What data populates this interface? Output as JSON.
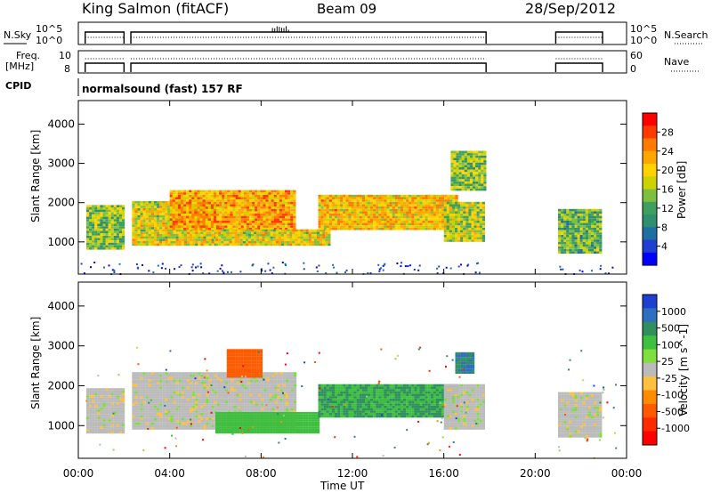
{
  "header": {
    "station": "King Salmon (fitACF)",
    "beam": "Beam 09",
    "date": "28/Sep/2012"
  },
  "left_labels": {
    "nsky": "N.Sky",
    "freq_line1": "Freq.",
    "freq_line2": "[MHz]",
    "cpid": "CPID"
  },
  "right_labels": {
    "nsearch": "N.Search",
    "nave": "Nave"
  },
  "cpid_text": "normalsound (fast) 157 RF",
  "chart_data": [
    {
      "type": "line",
      "panel": "noise",
      "series": [
        {
          "name": "N.Sky",
          "style": "solid",
          "x_hours": [
            0.3,
            2.0,
            2.3,
            17.85,
            20.9,
            22.95
          ],
          "segments_hours": [
            [
              0.3,
              2.0
            ],
            [
              2.3,
              17.85
            ],
            [
              20.9,
              22.95
            ]
          ],
          "level": "near 10^5 / 10^0 scale, steady with spikes near 08:30-09:00"
        },
        {
          "name": "N.Search",
          "style": "dotted",
          "segments_hours": [
            [
              0.3,
              2.0
            ],
            [
              2.3,
              17.85
            ],
            [
              20.9,
              22.95
            ]
          ]
        }
      ],
      "left_ticks": [
        "10^5",
        "10^0"
      ],
      "right_ticks": [
        "10^5",
        "10^0"
      ]
    },
    {
      "type": "line",
      "panel": "freq-nave",
      "series": [
        {
          "name": "Freq.",
          "style": "solid",
          "unit": "MHz"
        },
        {
          "name": "Nave",
          "style": "dotted"
        }
      ],
      "left_ticks": [
        "10",
        "8"
      ],
      "right_ticks": [
        "60",
        "0"
      ]
    },
    {
      "type": "heatmap",
      "panel": "power",
      "ylabel": "Slant Range [km]",
      "ylim": [
        180,
        4600
      ],
      "yticks": [
        1000,
        2000,
        3000,
        4000
      ],
      "x_range_hours": [
        0,
        24
      ],
      "colorbar": {
        "label": "Power [dB]",
        "ticks": [
          "28",
          "24",
          "20",
          "16",
          "12",
          "8",
          "4"
        ],
        "colors": [
          "#ff0000",
          "#ff3a00",
          "#ff7a00",
          "#ffa600",
          "#ffd200",
          "#cdd200",
          "#7fbf3f",
          "#3f9f5f",
          "#2f8f6f",
          "#1f6fa0",
          "#1f3fd0",
          "#0000ff"
        ]
      },
      "bands": [
        {
          "t0": 0.35,
          "t1": 1.95,
          "r0": 800,
          "r1": 1900,
          "level": 14
        },
        {
          "t0": 2.35,
          "t1": 6.0,
          "r0": 900,
          "r1": 2000,
          "level": 18
        },
        {
          "t0": 4.0,
          "t1": 9.5,
          "r0": 1300,
          "r1": 2300,
          "level": 22
        },
        {
          "t0": 6.0,
          "t1": 11.0,
          "r0": 900,
          "r1": 1300,
          "level": 18
        },
        {
          "t0": 10.5,
          "t1": 16.5,
          "r0": 1300,
          "r1": 2200,
          "level": 20
        },
        {
          "t0": 16.0,
          "t1": 17.8,
          "r0": 1000,
          "r1": 2000,
          "level": 16
        },
        {
          "t0": 16.3,
          "t1": 17.8,
          "r0": 2300,
          "r1": 3300,
          "level": 14
        },
        {
          "t0": 21.0,
          "t1": 22.9,
          "r0": 700,
          "r1": 1800,
          "level": 12
        }
      ],
      "xticks": [
        "00:00",
        "04:00",
        "08:00",
        "12:00",
        "16:00",
        "20:00",
        "00:00"
      ]
    },
    {
      "type": "heatmap",
      "panel": "velocity",
      "ylabel": "Slant Range [km]",
      "xlabel": "Time UT",
      "ylim": [
        180,
        4600
      ],
      "yticks": [
        1000,
        2000,
        3000,
        4000
      ],
      "x_range_hours": [
        0,
        24
      ],
      "colorbar": {
        "label": "Velocity [m s^-1]",
        "ticks": [
          "1000",
          "500",
          "100",
          "25",
          "-25",
          "-100",
          "-500",
          "-1000"
        ],
        "colors": [
          "#1f3fd0",
          "#2f6fc0",
          "#2f8f5f",
          "#3fbf3f",
          "#7fdf3f",
          "#bbbbbb",
          "#ffbf3f",
          "#ff8c00",
          "#ff5a00",
          "#ff2a00",
          "#ff0000"
        ]
      },
      "bands": [
        {
          "t0": 0.35,
          "t1": 1.95,
          "r0": 800,
          "r1": 1900,
          "vel": 0
        },
        {
          "t0": 2.35,
          "t1": 9.5,
          "r0": 900,
          "r1": 2300,
          "vel": 0
        },
        {
          "t0": 6.0,
          "t1": 10.5,
          "r0": 800,
          "r1": 1300,
          "vel": 60
        },
        {
          "t0": 10.5,
          "t1": 16.5,
          "r0": 1200,
          "r1": 2000,
          "vel": 80
        },
        {
          "t0": 16.0,
          "t1": 17.8,
          "r0": 900,
          "r1": 2000,
          "vel": 0
        },
        {
          "t0": 6.5,
          "t1": 8.0,
          "r0": 2200,
          "r1": 2900,
          "vel": -200
        },
        {
          "t0": 16.5,
          "t1": 17.3,
          "r0": 2300,
          "r1": 2800,
          "vel": 300
        },
        {
          "t0": 21.0,
          "t1": 22.9,
          "r0": 700,
          "r1": 1800,
          "vel": 0
        }
      ],
      "xticks": [
        "00:00",
        "04:00",
        "08:00",
        "12:00",
        "16:00",
        "20:00",
        "00:00"
      ]
    }
  ]
}
